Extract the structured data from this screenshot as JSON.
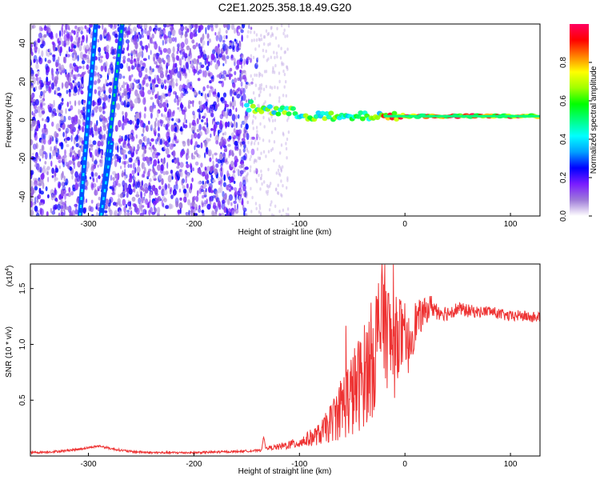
{
  "chart_data": [
    {
      "type": "heatmap",
      "title": "C2E1.2025.358.18.49.G20",
      "xlabel": "Height of straight line (km)",
      "ylabel": "Frequency (Hz)",
      "xlim": [
        -355,
        128
      ],
      "ylim": [
        -50,
        50
      ],
      "xticks": [
        -300,
        -200,
        -100,
        0,
        100
      ],
      "yticks": [
        -40,
        -20,
        0,
        20,
        40
      ],
      "colorbar": {
        "label": "Normalized spectral amplitude",
        "range": [
          0,
          1
        ],
        "ticks": [
          0.0,
          0.2,
          0.4,
          0.6,
          0.8
        ],
        "colors": [
          "#ffffff",
          "#9e7bd8",
          "#7a1cff",
          "#0000ff",
          "#00a0ff",
          "#00ffff",
          "#00ff80",
          "#00ff00",
          "#a0ff00",
          "#ffff00",
          "#ff8000",
          "#ff0000",
          "#ff0060"
        ]
      },
      "features": [
        {
          "name": "diagonal streak 1",
          "x_start": -308,
          "x_end": -293,
          "y_start": -50,
          "y_end": 50,
          "amplitude": 0.2
        },
        {
          "name": "diagonal streak 2",
          "x_start": -288,
          "x_end": -268,
          "y_start": -50,
          "y_end": 50,
          "amplitude": 0.3
        },
        {
          "name": "diagonal streak 3",
          "x_start": -288,
          "x_end": -278,
          "y_start": -50,
          "y_end": -12,
          "amplitude": 0.2
        },
        {
          "name": "tonal line",
          "points": [
            [
              -150,
              7
            ],
            [
              -120,
              5
            ],
            [
              -100,
              3
            ],
            [
              -80,
              2
            ],
            [
              -60,
              1
            ],
            [
              -40,
              2
            ],
            [
              -20,
              2
            ],
            [
              0,
              2
            ],
            [
              40,
              2
            ],
            [
              80,
              2
            ],
            [
              128,
              2
            ]
          ],
          "amplitude": 0.7
        }
      ]
    },
    {
      "type": "line",
      "title": "",
      "xlabel": "Height of straight line (km)",
      "ylabel": "SNR (10 * v/v)",
      "y_multiplier": "(x10",
      "y_multiplier_exp": "4",
      "y_multiplier_close": ")",
      "xlim": [
        -355,
        128
      ],
      "ylim": [
        0,
        1.72
      ],
      "xticks": [
        -300,
        -200,
        -100,
        0,
        100
      ],
      "yticks": [
        0.5,
        1.0,
        1.5
      ],
      "series": [
        {
          "name": "SNR",
          "color": "#ee3333",
          "x": [
            -355,
            -330,
            -310,
            -290,
            -275,
            -260,
            -240,
            -200,
            -160,
            -136,
            -134,
            -132,
            -120,
            -100,
            -80,
            -70,
            -60,
            -50,
            -40,
            -30,
            -25,
            -20,
            -15,
            -10,
            -5,
            0,
            5,
            10,
            15,
            20,
            25,
            30,
            40,
            50,
            60,
            70,
            80,
            90,
            100,
            110,
            120,
            128
          ],
          "y": [
            0.03,
            0.04,
            0.06,
            0.09,
            0.06,
            0.04,
            0.03,
            0.03,
            0.04,
            0.05,
            0.18,
            0.07,
            0.08,
            0.12,
            0.2,
            0.3,
            0.45,
            0.55,
            0.7,
            0.9,
            1.1,
            1.3,
            1.05,
            0.95,
            1.15,
            0.9,
            1.05,
            1.2,
            1.25,
            1.3,
            1.35,
            1.3,
            1.28,
            1.32,
            1.3,
            1.29,
            1.3,
            1.27,
            1.25,
            1.26,
            1.24,
            1.25
          ],
          "noise_band": [
            0.01,
            0.01,
            0.01,
            0.01,
            0.01,
            0.01,
            0.01,
            0.01,
            0.01,
            0.01,
            0.01,
            0.01,
            0.03,
            0.05,
            0.1,
            0.18,
            0.3,
            0.4,
            0.45,
            0.55,
            0.6,
            0.6,
            0.5,
            0.45,
            0.35,
            0.3,
            0.25,
            0.2,
            0.15,
            0.12,
            0.1,
            0.08,
            0.07,
            0.06,
            0.06,
            0.05,
            0.05,
            0.05,
            0.05,
            0.05,
            0.05,
            0.05
          ]
        }
      ]
    }
  ]
}
